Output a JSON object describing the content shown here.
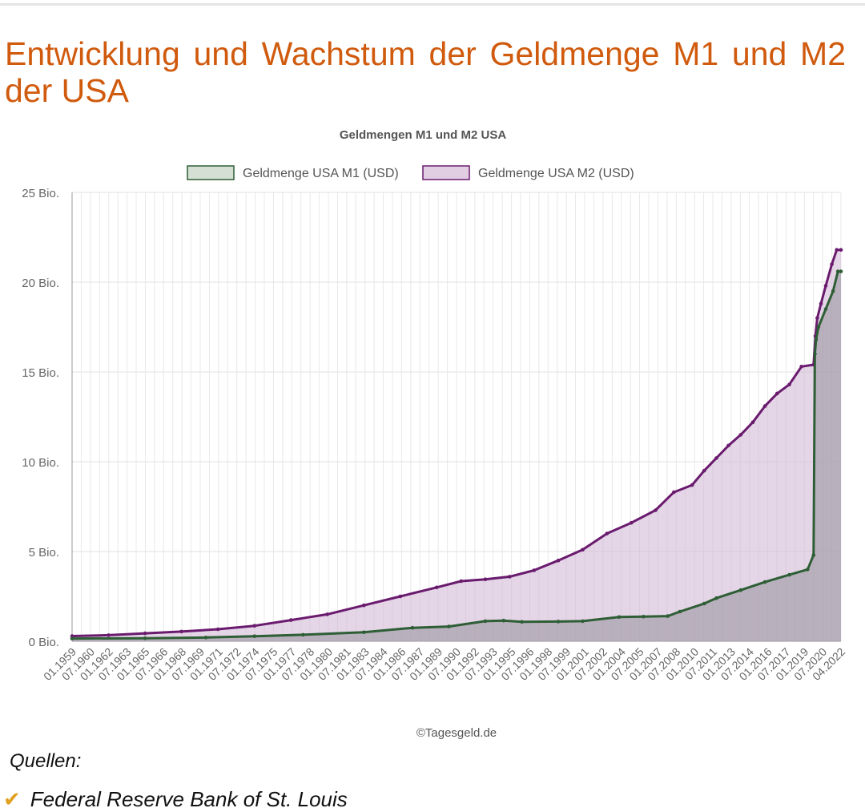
{
  "page": {
    "title": "Entwicklung und Wachstum der Geldmenge M1 und M2 der USA",
    "credit": "©Tagesgeld.de",
    "sources_label": "Quellen:",
    "sources": [
      "Federal Reserve Bank of St. Louis"
    ]
  },
  "chart_data": {
    "type": "area",
    "title": "Geldmengen M1 und M2 USA",
    "xlabel": "",
    "ylabel": "",
    "ylim": [
      0,
      25
    ],
    "y_unit": "Bio.",
    "y_ticks": [
      "0 Bio.",
      "5 Bio.",
      "10 Bio.",
      "15 Bio.",
      "20 Bio.",
      "25 Bio."
    ],
    "grid": true,
    "legend_position": "top",
    "x_range": [
      1959.0,
      2022.25
    ],
    "x_tick_labels": [
      "01.1959",
      "07.1960",
      "01.1962",
      "07.1963",
      "01.1965",
      "07.1966",
      "01.1968",
      "07.1969",
      "01.1971",
      "07.1972",
      "01.1974",
      "07.1975",
      "01.1977",
      "07.1978",
      "01.1980",
      "07.1981",
      "01.1983",
      "07.1984",
      "01.1986",
      "07.1987",
      "01.1989",
      "07.1990",
      "01.1992",
      "07.1993",
      "01.1995",
      "07.1996",
      "01.1998",
      "07.1999",
      "01.2001",
      "07.2002",
      "01.2004",
      "07.2005",
      "01.2007",
      "07.2008",
      "01.2010",
      "07.2011",
      "01.2013",
      "07.2014",
      "01.2016",
      "07.2017",
      "01.2019",
      "07.2020",
      "04.2022"
    ],
    "series": [
      {
        "name": "Geldmenge USA M1 (USD)",
        "color": "#2e5e35",
        "fill": "#d5dfd4",
        "x": [
          1959,
          1965,
          1970,
          1974,
          1978,
          1983,
          1987,
          1990,
          1993,
          1994.5,
          1996,
          1999,
          2001,
          2004,
          2006,
          2008,
          2009,
          2011,
          2012,
          2014,
          2016,
          2018,
          2019.5,
          2020.0,
          2020.1,
          2020.2,
          2020.4,
          2021.0,
          2021.6,
          2022.0,
          2022.25
        ],
        "values": [
          0.15,
          0.17,
          0.21,
          0.28,
          0.36,
          0.5,
          0.75,
          0.82,
          1.12,
          1.15,
          1.08,
          1.1,
          1.12,
          1.35,
          1.37,
          1.4,
          1.65,
          2.1,
          2.4,
          2.85,
          3.3,
          3.7,
          4.0,
          4.8,
          16.0,
          16.8,
          17.5,
          18.5,
          19.5,
          20.6,
          20.6
        ]
      },
      {
        "name": "Geldmenge USA M2 (USD)",
        "color": "#6a1b6e",
        "fill": "#e2cee3",
        "x": [
          1959,
          1962,
          1965,
          1968,
          1971,
          1974,
          1977,
          1980,
          1983,
          1986,
          1989,
          1991,
          1993,
          1995,
          1997,
          1999,
          2001,
          2003,
          2005,
          2007,
          2008.5,
          2010,
          2011,
          2012,
          2013,
          2014,
          2015,
          2016,
          2017,
          2018,
          2019,
          2020.0,
          2020.15,
          2020.3,
          2020.6,
          2021.0,
          2021.5,
          2021.9,
          2022.25
        ],
        "values": [
          0.29,
          0.34,
          0.44,
          0.54,
          0.67,
          0.86,
          1.18,
          1.5,
          2.0,
          2.5,
          3.0,
          3.35,
          3.45,
          3.6,
          3.95,
          4.5,
          5.1,
          6.0,
          6.6,
          7.3,
          8.3,
          8.7,
          9.5,
          10.2,
          10.9,
          11.5,
          12.2,
          13.1,
          13.8,
          14.3,
          15.3,
          15.4,
          17.0,
          18.0,
          18.8,
          19.8,
          21.0,
          21.8,
          21.8
        ]
      }
    ]
  }
}
